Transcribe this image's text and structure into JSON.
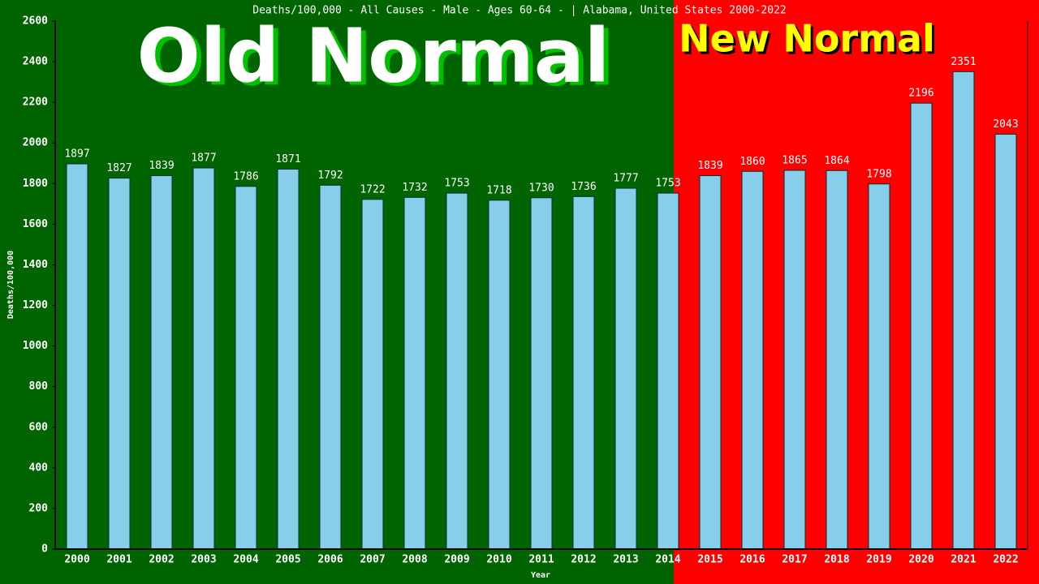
{
  "chart_data": {
    "type": "bar",
    "title": "Deaths/100,000 - All Causes - Male - Ages 60-64 -  | Alabama, United States 2000-2022",
    "annotations": [
      "Old Normal",
      "New Normal"
    ],
    "x_label": "Year",
    "y_label": "Deaths/100,000",
    "categories": [
      "2000",
      "2001",
      "2002",
      "2003",
      "2004",
      "2005",
      "2006",
      "2007",
      "2008",
      "2009",
      "2010",
      "2011",
      "2012",
      "2013",
      "2014",
      "2015",
      "2016",
      "2017",
      "2018",
      "2019",
      "2020",
      "2021",
      "2022"
    ],
    "values": [
      1897,
      1827,
      1839,
      1877,
      1786,
      1871,
      1792,
      1722,
      1732,
      1753,
      1718,
      1730,
      1736,
      1777,
      1753,
      1839,
      1860,
      1865,
      1864,
      1798,
      2196,
      2351,
      2043
    ],
    "color": "#87ceeb",
    "ylim": [
      0,
      2600
    ],
    "yticks": [
      0,
      200,
      400,
      600,
      800,
      1000,
      1200,
      1400,
      1600,
      1800,
      2000,
      2200,
      2400,
      2600
    ]
  }
}
